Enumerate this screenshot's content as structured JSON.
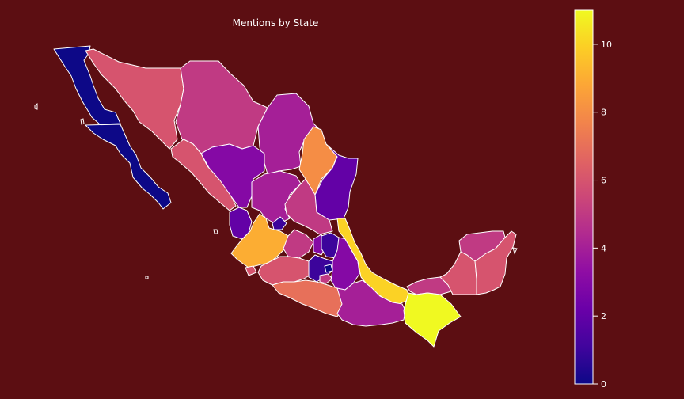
{
  "chart_data": {
    "type": "choropleth",
    "title": "Mentions by State",
    "colorscale": "plasma",
    "background": "#5c0e12",
    "border_color": "#ffffff",
    "colorbar": {
      "min": 0,
      "max": 11,
      "ticks": [
        0,
        2,
        4,
        6,
        8,
        10
      ]
    },
    "regions": [
      {
        "name": "Baja California",
        "value": 0
      },
      {
        "name": "Baja California Sur",
        "value": 0
      },
      {
        "name": "Sonora",
        "value": 6
      },
      {
        "name": "Chihuahua",
        "value": 5
      },
      {
        "name": "Coahuila",
        "value": 4
      },
      {
        "name": "Nuevo León",
        "value": 8
      },
      {
        "name": "Tamaulipas",
        "value": 2
      },
      {
        "name": "Sinaloa",
        "value": 6
      },
      {
        "name": "Durango",
        "value": 3
      },
      {
        "name": "Zacatecas",
        "value": 4
      },
      {
        "name": "San Luis Potosí",
        "value": 5
      },
      {
        "name": "Nayarit",
        "value": 2
      },
      {
        "name": "Aguascalientes",
        "value": 1
      },
      {
        "name": "Jalisco",
        "value": 9
      },
      {
        "name": "Guanajuato",
        "value": 5
      },
      {
        "name": "Querétaro",
        "value": 3
      },
      {
        "name": "Hidalgo",
        "value": 1
      },
      {
        "name": "Colima",
        "value": 6
      },
      {
        "name": "Michoacán",
        "value": 6
      },
      {
        "name": "México",
        "value": 1
      },
      {
        "name": "Ciudad de México",
        "value": 0
      },
      {
        "name": "Morelos",
        "value": 5
      },
      {
        "name": "Tlaxcala",
        "value": 4
      },
      {
        "name": "Puebla",
        "value": 3
      },
      {
        "name": "Veracruz",
        "value": 10
      },
      {
        "name": "Guerrero",
        "value": 7
      },
      {
        "name": "Oaxaca",
        "value": 4
      },
      {
        "name": "Tabasco",
        "value": 5
      },
      {
        "name": "Chiapas",
        "value": 11
      },
      {
        "name": "Campeche",
        "value": 6
      },
      {
        "name": "Yucatán",
        "value": 5
      },
      {
        "name": "Quintana Roo",
        "value": 6
      }
    ]
  }
}
